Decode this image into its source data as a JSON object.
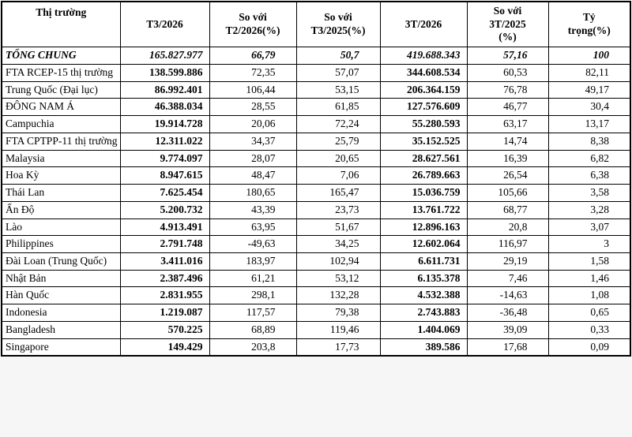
{
  "colors": {
    "border": "#000000",
    "text": "#000000",
    "background": "#ffffff"
  },
  "table": {
    "headers": [
      "Thị trường",
      "T3/2026",
      "So với\nT2/2026(%)",
      "So với\nT3/2025(%)",
      "3T/2026",
      "So với\n3T/2025\n(%)",
      "Tỷ\ntrọng(%)"
    ],
    "rows": [
      {
        "bold_italic": true,
        "cells": [
          "TỔNG CHUNG",
          "165.827.977",
          "66,79",
          "50,7",
          "419.688.343",
          "57,16",
          "100"
        ]
      },
      {
        "bold_italic": false,
        "cells": [
          "FTA RCEP-15 thị trường",
          "138.599.886",
          "72,35",
          "57,07",
          "344.608.534",
          "60,53",
          "82,11"
        ]
      },
      {
        "bold_italic": false,
        "cells": [
          "Trung Quốc (Đại lục)",
          "86.992.401",
          "106,44",
          "53,15",
          "206.364.159",
          "76,78",
          "49,17"
        ]
      },
      {
        "bold_italic": false,
        "cells": [
          "ĐÔNG NAM Á",
          "46.388.034",
          "28,55",
          "61,85",
          "127.576.609",
          "46,77",
          "30,4"
        ]
      },
      {
        "bold_italic": false,
        "cells": [
          "Campuchia",
          "19.914.728",
          "20,06",
          "72,24",
          "55.280.593",
          "63,17",
          "13,17"
        ]
      },
      {
        "bold_italic": false,
        "cells": [
          "FTA CPTPP-11 thị trường",
          "12.311.022",
          "34,37",
          "25,79",
          "35.152.525",
          "14,74",
          "8,38"
        ]
      },
      {
        "bold_italic": false,
        "cells": [
          "Malaysia",
          "9.774.097",
          "28,07",
          "20,65",
          "28.627.561",
          "16,39",
          "6,82"
        ]
      },
      {
        "bold_italic": false,
        "cells": [
          "Hoa Kỳ",
          "8.947.615",
          "48,47",
          "7,06",
          "26.789.663",
          "26,54",
          "6,38"
        ]
      },
      {
        "bold_italic": false,
        "cells": [
          "Thái Lan",
          "7.625.454",
          "180,65",
          "165,47",
          "15.036.759",
          "105,66",
          "3,58"
        ]
      },
      {
        "bold_italic": false,
        "cells": [
          "Ấn Độ",
          "5.200.732",
          "43,39",
          "23,73",
          "13.761.722",
          "68,77",
          "3,28"
        ]
      },
      {
        "bold_italic": false,
        "cells": [
          "Lào",
          "4.913.491",
          "63,95",
          "51,67",
          "12.896.163",
          "20,8",
          "3,07"
        ]
      },
      {
        "bold_italic": false,
        "cells": [
          "Philippines",
          "2.791.748",
          "-49,63",
          "34,25",
          "12.602.064",
          "116,97",
          "3"
        ]
      },
      {
        "bold_italic": false,
        "cells": [
          "Đài Loan (Trung Quốc)",
          "3.411.016",
          "183,97",
          "102,94",
          "6.611.731",
          "29,19",
          "1,58"
        ]
      },
      {
        "bold_italic": false,
        "cells": [
          "Nhật Bản",
          "2.387.496",
          "61,21",
          "53,12",
          "6.135.378",
          "7,46",
          "1,46"
        ]
      },
      {
        "bold_italic": false,
        "cells": [
          "Hàn Quốc",
          "2.831.955",
          "298,1",
          "132,28",
          "4.532.388",
          "-14,63",
          "1,08"
        ]
      },
      {
        "bold_italic": false,
        "cells": [
          "Indonesia",
          "1.219.087",
          "117,57",
          "79,38",
          "2.743.883",
          "-36,48",
          "0,65"
        ]
      },
      {
        "bold_italic": false,
        "cells": [
          "Bangladesh",
          "570.225",
          "68,89",
          "119,46",
          "1.404.069",
          "39,09",
          "0,33"
        ]
      },
      {
        "bold_italic": false,
        "cells": [
          "Singapore",
          "149.429",
          "203,8",
          "17,73",
          "389.586",
          "17,68",
          "0,09"
        ]
      }
    ]
  }
}
